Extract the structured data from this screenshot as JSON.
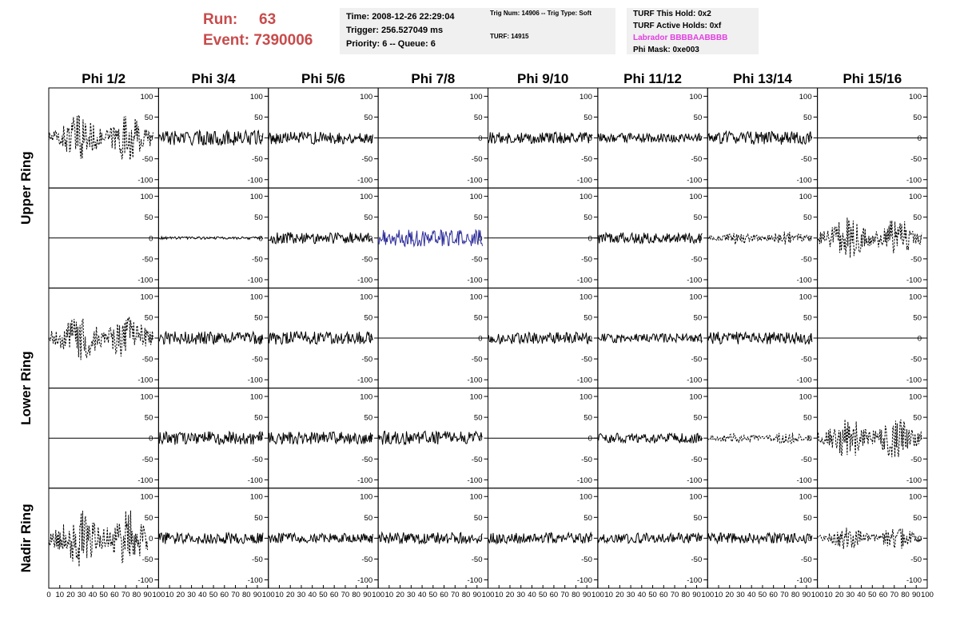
{
  "header": {
    "run_label": "Run:",
    "run_value": "63",
    "event_label": "Event:",
    "event_value": "7390006",
    "time_line": "Time: 2008-12-26 22:29:04",
    "trigger_line": "Trigger: 256.527049 ms",
    "priority_line": "Priority: 6 -- Queue: 6",
    "trig_line": "Trig Num: 14906 -- Trig Type: Soft",
    "turf_line": "TURF: 14915",
    "turf_hold_line": "TURF This Hold: 0x2",
    "turf_active_line": "TURF Active Holds: 0xf",
    "labrador_line": "Labrador BBBBAABBBB",
    "phi_mask_line": "Phi Mask: 0xe003"
  },
  "chart_data": {
    "type": "line",
    "columns": [
      "Phi 1/2",
      "Phi 3/4",
      "Phi 5/6",
      "Phi 7/8",
      "Phi 9/10",
      "Phi 11/12",
      "Phi 13/14",
      "Phi 15/16"
    ],
    "ring_labels": [
      {
        "name": "Upper Ring",
        "rows": [
          0,
          1
        ]
      },
      {
        "name": "Lower Ring",
        "rows": [
          2,
          3
        ]
      },
      {
        "name": "Nadir Ring",
        "rows": [
          4,
          4
        ]
      }
    ],
    "xlim": [
      0,
      100
    ],
    "x_ticks": [
      0,
      10,
      20,
      30,
      40,
      50,
      60,
      70,
      80,
      90,
      100
    ],
    "ylim": [
      -120,
      120
    ],
    "y_ticks": [
      100,
      50,
      0,
      -50,
      -100
    ],
    "colors": {
      "solid": "#000000",
      "dashed": "#000000",
      "blue": "#2a2a9a"
    },
    "panels": [
      [
        {
          "style": "dashed",
          "amp": 45,
          "start": 0,
          "end": 95
        },
        {
          "style": "solid",
          "amp": 18,
          "start": 0,
          "end": 95
        },
        {
          "style": "solid",
          "amp": 15,
          "start": 0,
          "end": 95
        },
        {
          "style": "flat"
        },
        {
          "style": "solid",
          "amp": 14,
          "start": 0,
          "end": 95
        },
        {
          "style": "solid",
          "amp": 11,
          "start": 0,
          "end": 95
        },
        {
          "style": "solid",
          "amp": 16,
          "start": 0,
          "end": 95
        },
        {
          "style": "flat"
        }
      ],
      [
        {
          "style": "flat"
        },
        {
          "style": "solid",
          "amp": 3,
          "start": 0,
          "end": 95
        },
        {
          "style": "solid",
          "amp": 14,
          "start": 0,
          "end": 95
        },
        {
          "style": "blue",
          "amp": 20,
          "start": 0,
          "end": 95
        },
        {
          "style": "flat"
        },
        {
          "style": "solid",
          "amp": 13,
          "start": 0,
          "end": 95
        },
        {
          "style": "dashed",
          "amp": 13,
          "start": 0,
          "end": 95
        },
        {
          "style": "dashed",
          "amp": 40,
          "start": 0,
          "end": 95
        }
      ],
      [
        {
          "style": "dashed",
          "amp": 45,
          "start": 0,
          "end": 95
        },
        {
          "style": "solid",
          "amp": 16,
          "start": 0,
          "end": 95
        },
        {
          "style": "solid",
          "amp": 16,
          "start": 0,
          "end": 95
        },
        {
          "style": "flat"
        },
        {
          "style": "solid",
          "amp": 14,
          "start": 0,
          "end": 95
        },
        {
          "style": "solid",
          "amp": 11,
          "start": 0,
          "end": 95
        },
        {
          "style": "solid",
          "amp": 15,
          "start": 0,
          "end": 95
        },
        {
          "style": "flat"
        }
      ],
      [
        {
          "style": "flat"
        },
        {
          "style": "solid",
          "amp": 16,
          "start": 0,
          "end": 95
        },
        {
          "style": "solid",
          "amp": 15,
          "start": 0,
          "end": 95
        },
        {
          "style": "solid",
          "amp": 17,
          "start": 0,
          "end": 95
        },
        {
          "style": "flat"
        },
        {
          "style": "solid",
          "amp": 12,
          "start": 0,
          "end": 95
        },
        {
          "style": "dashed",
          "amp": 12,
          "start": 0,
          "end": 95
        },
        {
          "style": "dashed",
          "amp": 40,
          "start": 0,
          "end": 95
        }
      ],
      [
        {
          "style": "dashed",
          "amp": 55,
          "start": 0,
          "end": 90
        },
        {
          "style": "solid",
          "amp": 14,
          "start": 0,
          "end": 95
        },
        {
          "style": "solid",
          "amp": 12,
          "start": 0,
          "end": 95
        },
        {
          "style": "solid",
          "amp": 14,
          "start": 0,
          "end": 95
        },
        {
          "style": "solid",
          "amp": 13,
          "start": 0,
          "end": 95
        },
        {
          "style": "solid",
          "amp": 13,
          "start": 0,
          "end": 95
        },
        {
          "style": "solid",
          "amp": 13,
          "start": 0,
          "end": 95
        },
        {
          "style": "dashed",
          "amp": 22,
          "start": 0,
          "end": 95
        }
      ]
    ]
  }
}
